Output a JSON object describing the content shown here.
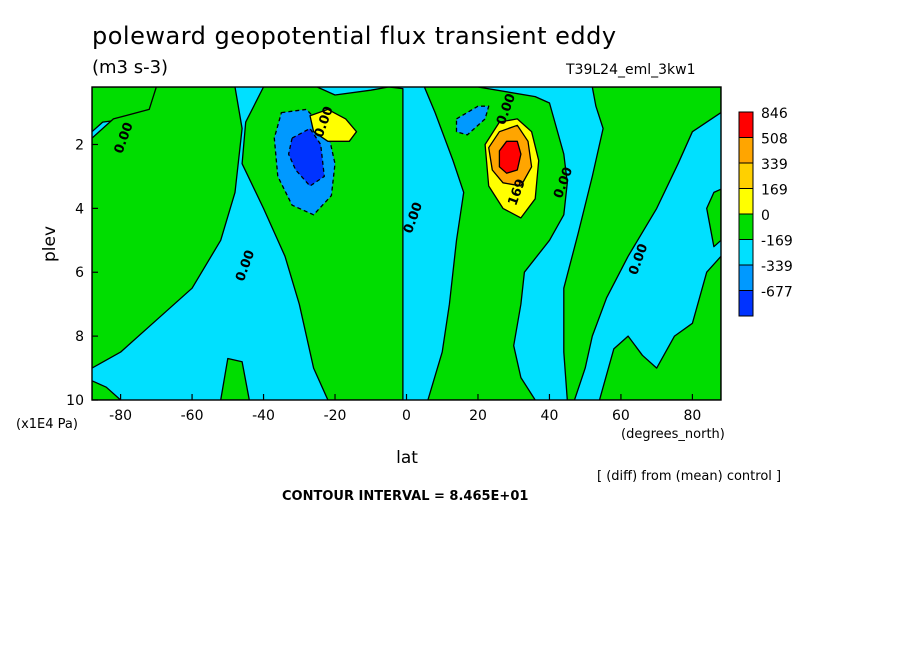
{
  "header": {
    "title": "poleward geopotential flux transient eddy",
    "units": "(m3 s-3)",
    "run_id": "T39L24_eml_3kw1"
  },
  "footer": {
    "comparison_note": "[ (diff) from (mean) control ]",
    "contour_interval": "CONTOUR INTERVAL = 8.465E+01"
  },
  "chart_data": {
    "type": "heatmap",
    "title": "poleward geopotential flux transient eddy",
    "subtitle": "(m3 s-3)",
    "xlabel": "lat",
    "xunit": "(degrees_north)",
    "ylabel": "plev",
    "yunit": "(x1E4 Pa)",
    "xlim": [
      -88,
      88
    ],
    "ylim": [
      0.2,
      10
    ],
    "y_inverted": true,
    "xticks": [
      {
        "value": -80,
        "label": "-80"
      },
      {
        "value": -60,
        "label": "-60"
      },
      {
        "value": -40,
        "label": "-40"
      },
      {
        "value": -20,
        "label": "-20"
      },
      {
        "value": 0,
        "label": "0"
      },
      {
        "value": 20,
        "label": "20"
      },
      {
        "value": 40,
        "label": "40"
      },
      {
        "value": 60,
        "label": "60"
      },
      {
        "value": 80,
        "label": "80"
      }
    ],
    "yticks": [
      {
        "value": 2,
        "label": "2"
      },
      {
        "value": 4,
        "label": "4"
      },
      {
        "value": 6,
        "label": "6"
      },
      {
        "value": 8,
        "label": "8"
      },
      {
        "value": 10,
        "label": "10"
      }
    ],
    "contour_interval": 84.65,
    "colorbar": {
      "labels": [
        "846",
        "508",
        "339",
        "169",
        "0",
        "-169",
        "-339",
        "-677"
      ],
      "colors": [
        "#ff0000",
        "#ffa500",
        "#ffd000",
        "#ffff00",
        "#00dd00",
        "#00e0ff",
        "#0099ff",
        "#0033ff"
      ]
    },
    "background_color": "#00e0ff",
    "positive_color": "#00dd00",
    "regions": [
      {
        "name": "positive-west-edge",
        "sign": "positive",
        "points": [
          [
            -88,
            0.2
          ],
          [
            -60,
            0.2
          ],
          [
            -65,
            1.0
          ],
          [
            -85,
            1.3
          ],
          [
            -88,
            1.6
          ]
        ]
      },
      {
        "name": "positive-southern-midlat",
        "sign": "positive",
        "points": [
          [
            -70,
            0.2
          ],
          [
            -48,
            0.2
          ],
          [
            -46,
            1.5
          ],
          [
            -48,
            3.5
          ],
          [
            -52,
            5.0
          ],
          [
            -60,
            6.5
          ],
          [
            -70,
            7.5
          ],
          [
            -80,
            8.5
          ],
          [
            -88,
            9.0
          ],
          [
            -88,
            1.8
          ],
          [
            -82,
            1.2
          ],
          [
            -72,
            0.9
          ]
        ]
      },
      {
        "name": "positive-high-latitude-bottom",
        "sign": "positive",
        "points": [
          [
            -88,
            9.4
          ],
          [
            -84,
            9.6
          ],
          [
            -80,
            10
          ],
          [
            -88,
            10
          ]
        ]
      },
      {
        "name": "positive-south-bottom",
        "sign": "positive",
        "points": [
          [
            -52,
            10
          ],
          [
            -50,
            8.7
          ],
          [
            -46,
            8.8
          ],
          [
            -44,
            10
          ]
        ]
      },
      {
        "name": "positive-southern-jet",
        "sign": "positive",
        "points": [
          [
            -40,
            0.2
          ],
          [
            -25,
            0.2
          ],
          [
            -20,
            0.45
          ],
          [
            -10,
            0.3
          ],
          [
            -5,
            0.2
          ],
          [
            -1,
            0.25
          ],
          [
            -1,
            10
          ],
          [
            -22,
            10
          ],
          [
            -26,
            9
          ],
          [
            -30,
            7
          ],
          [
            -34,
            5.5
          ],
          [
            -40,
            4.0
          ],
          [
            -46,
            2.6
          ],
          [
            -45,
            1.3
          ]
        ]
      },
      {
        "name": "positive-northern-jet",
        "sign": "positive",
        "points": [
          [
            5,
            0.2
          ],
          [
            20,
            0.2
          ],
          [
            36,
            0.5
          ],
          [
            40,
            0.7
          ],
          [
            44,
            2.3
          ],
          [
            45,
            3.2
          ],
          [
            44,
            4.2
          ],
          [
            40,
            5.0
          ],
          [
            33,
            6.0
          ],
          [
            32,
            7.0
          ],
          [
            30,
            8.3
          ],
          [
            32,
            9.3
          ],
          [
            36,
            10
          ],
          [
            6,
            10
          ],
          [
            10,
            8.5
          ],
          [
            12,
            7.0
          ],
          [
            14,
            5.0
          ],
          [
            16,
            3.5
          ],
          [
            13,
            2.5
          ],
          [
            8,
            1.0
          ]
        ]
      },
      {
        "name": "positive-northern-midlat",
        "sign": "positive",
        "points": [
          [
            52,
            0.2
          ],
          [
            88,
            0.2
          ],
          [
            88,
            1.0
          ],
          [
            80,
            1.6
          ],
          [
            76,
            2.6
          ],
          [
            70,
            4.0
          ],
          [
            62,
            5.5
          ],
          [
            56,
            6.8
          ],
          [
            52,
            8.0
          ],
          [
            50,
            9.0
          ],
          [
            47,
            10
          ],
          [
            45,
            10
          ],
          [
            44,
            8.5
          ],
          [
            44,
            6.5
          ],
          [
            48,
            4.8
          ],
          [
            52,
            3.0
          ],
          [
            55,
            1.5
          ],
          [
            53,
            0.8
          ]
        ]
      },
      {
        "name": "positive-north-bottom",
        "sign": "positive",
        "points": [
          [
            54,
            10
          ],
          [
            58,
            8.4
          ],
          [
            62,
            8.0
          ],
          [
            66,
            8.6
          ],
          [
            70,
            9.0
          ],
          [
            75,
            8.0
          ],
          [
            80,
            7.6
          ],
          [
            84,
            6.0
          ],
          [
            88,
            5.5
          ],
          [
            88,
            10
          ]
        ]
      },
      {
        "name": "positive-north-edge",
        "sign": "positive",
        "points": [
          [
            84,
            4.0
          ],
          [
            86,
            3.5
          ],
          [
            88,
            3.4
          ],
          [
            88,
            5.0
          ],
          [
            86,
            5.2
          ]
        ]
      },
      {
        "name": "negative-southern-jet-outer",
        "sign": "negative",
        "points": [
          [
            -35,
            1.0
          ],
          [
            -28,
            0.9
          ],
          [
            -22,
            1.6
          ],
          [
            -20,
            2.6
          ],
          [
            -21,
            3.6
          ],
          [
            -26,
            4.2
          ],
          [
            -32,
            3.9
          ],
          [
            -36,
            3.0
          ],
          [
            -37,
            1.8
          ]
        ]
      },
      {
        "name": "negative-southern-jet-core",
        "sign": "negative",
        "points": [
          [
            -32,
            1.8
          ],
          [
            -27,
            1.5
          ],
          [
            -24,
            2.0
          ],
          [
            -23,
            3.0
          ],
          [
            -27,
            3.3
          ],
          [
            -31,
            2.8
          ],
          [
            -33,
            2.3
          ]
        ]
      },
      {
        "name": "negative-northern-upper",
        "sign": "negative",
        "points": [
          [
            14,
            1.2
          ],
          [
            20,
            0.8
          ],
          [
            23,
            0.8
          ],
          [
            22,
            1.2
          ],
          [
            17,
            1.7
          ],
          [
            14,
            1.6
          ]
        ]
      },
      {
        "name": "positive-southern-yellow",
        "sign": "positive",
        "points": [
          [
            -27,
            1.1
          ],
          [
            -22,
            0.9
          ],
          [
            -17,
            1.2
          ],
          [
            -14,
            1.6
          ],
          [
            -16,
            1.9
          ],
          [
            -22,
            1.9
          ],
          [
            -26,
            1.6
          ]
        ]
      },
      {
        "name": "positive-northern-yellow",
        "sign": "positive",
        "points": [
          [
            22,
            2.0
          ],
          [
            26,
            1.3
          ],
          [
            31,
            1.2
          ],
          [
            35,
            1.6
          ],
          [
            37,
            2.5
          ],
          [
            36,
            3.7
          ],
          [
            32,
            4.3
          ],
          [
            27,
            4.0
          ],
          [
            23,
            3.3
          ]
        ]
      },
      {
        "name": "positive-northern-orange",
        "sign": "positive",
        "points": [
          [
            23,
            2.1
          ],
          [
            26,
            1.6
          ],
          [
            31,
            1.4
          ],
          [
            34,
            1.9
          ],
          [
            35,
            2.7
          ],
          [
            32,
            3.3
          ],
          [
            27,
            3.2
          ],
          [
            24,
            2.8
          ]
        ]
      },
      {
        "name": "positive-northern-core",
        "sign": "positive",
        "points": [
          [
            26,
            2.2
          ],
          [
            28,
            1.9
          ],
          [
            31,
            1.9
          ],
          [
            32,
            2.3
          ],
          [
            31,
            2.8
          ],
          [
            28,
            2.9
          ],
          [
            26,
            2.7
          ]
        ]
      }
    ],
    "contour_labels": [
      {
        "label": "0.00",
        "lat": -79,
        "plev": 1.8
      },
      {
        "label": "0.00",
        "lat": -23,
        "plev": 1.3
      },
      {
        "label": "0.00",
        "lat": 28,
        "plev": 0.9
      },
      {
        "label": "0.00",
        "lat": 2,
        "plev": 4.3
      },
      {
        "label": "0.00",
        "lat": -45,
        "plev": 5.8
      },
      {
        "label": "0.00",
        "lat": 44,
        "plev": 3.2
      },
      {
        "label": "0.00",
        "lat": 65,
        "plev": 5.6
      },
      {
        "label": "169",
        "lat": 31,
        "plev": 3.5
      }
    ]
  }
}
